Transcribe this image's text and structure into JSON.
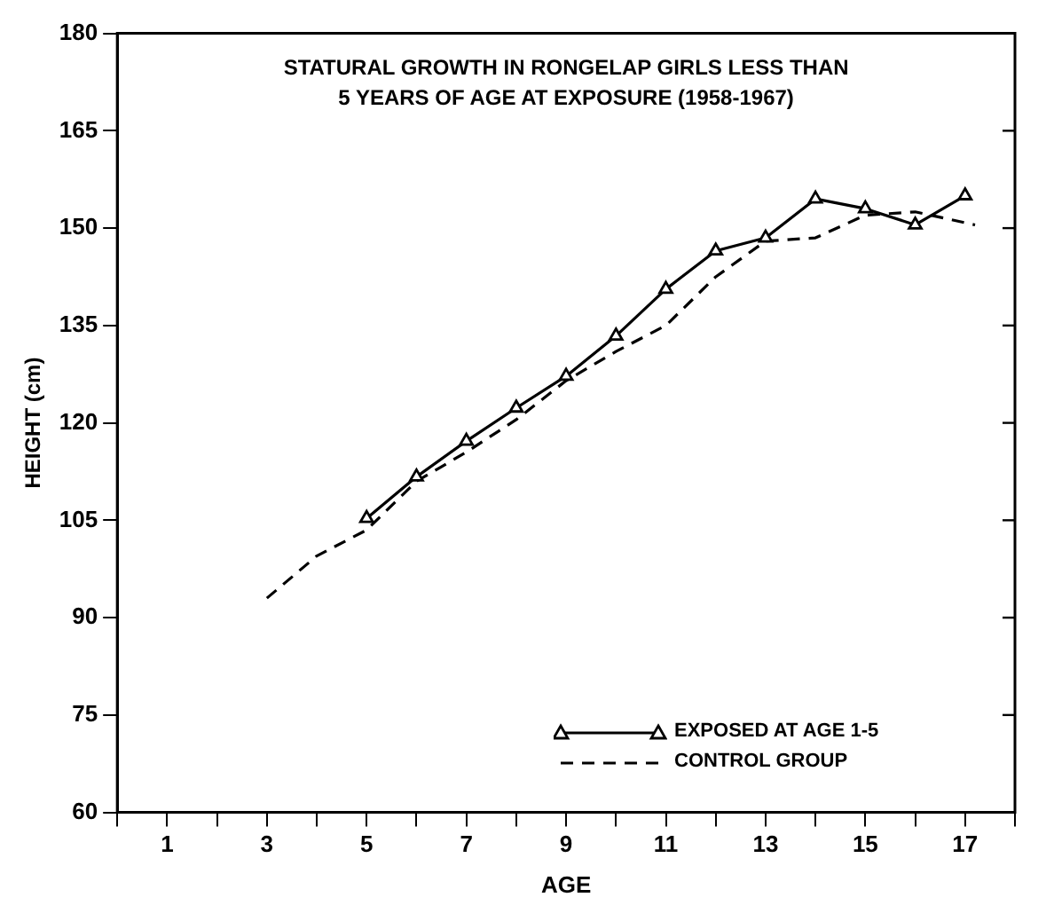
{
  "chart_data": {
    "type": "line",
    "title": "STATURAL GROWTH IN RONGELAP GIRLS LESS THAN\n5 YEARS OF AGE AT EXPOSURE (1958-1967)",
    "xlabel": "AGE",
    "ylabel": "HEIGHT (cm)",
    "xlim": [
      0,
      18
    ],
    "xticks": [
      {
        "value": 0,
        "label": null
      },
      1,
      {
        "value": 2,
        "label": null
      },
      3,
      {
        "value": 4,
        "label": null
      },
      5,
      {
        "value": 6,
        "label": null
      },
      7,
      {
        "value": 8,
        "label": null
      },
      9,
      {
        "value": 10,
        "label": null
      },
      11,
      {
        "value": 12,
        "label": null
      },
      13,
      {
        "value": 14,
        "label": null
      },
      15,
      {
        "value": 16,
        "label": null
      },
      17,
      {
        "value": 18,
        "label": null
      }
    ],
    "ylim": [
      60,
      180
    ],
    "yticks": [
      60,
      75,
      90,
      105,
      120,
      135,
      150,
      165,
      180
    ],
    "grid": false,
    "legend": "bottom right",
    "series": [
      {
        "name": "EXPOSED AT AGE 1-5",
        "color": "#000000",
        "marker": "triangle",
        "line_style": "solid",
        "x": [
          5,
          6,
          7,
          8,
          9,
          10,
          11,
          12,
          13,
          14,
          15,
          16,
          17
        ],
        "values": [
          105.3,
          111.7,
          117.2,
          122.3,
          127.2,
          133.4,
          140.6,
          146.5,
          148.5,
          154.5,
          153,
          150.5,
          155
        ]
      },
      {
        "name": "CONTROL GROUP",
        "color": "#000000",
        "marker": "none",
        "line_style": "dashed",
        "x": [
          3,
          4,
          5,
          6,
          7,
          8,
          9,
          10,
          11,
          12,
          13,
          14,
          15,
          16,
          17.2
        ],
        "values": [
          93,
          99.5,
          103.5,
          111,
          115.5,
          120.5,
          126.5,
          131,
          135,
          142.5,
          148,
          148.5,
          152,
          152.5,
          150.5
        ]
      }
    ]
  }
}
